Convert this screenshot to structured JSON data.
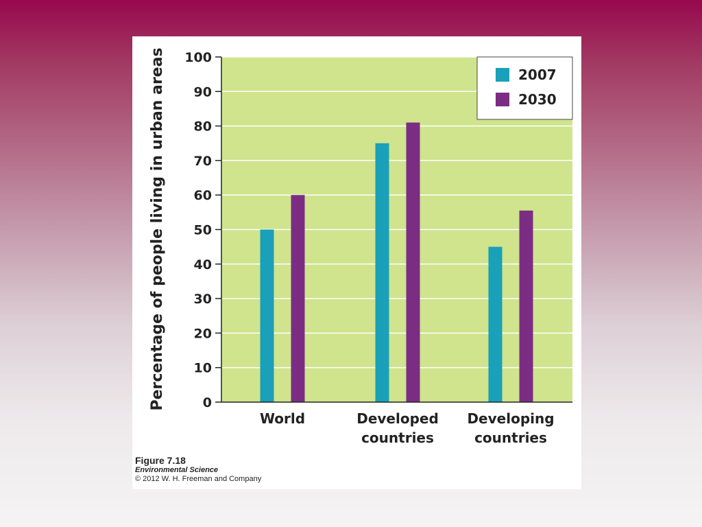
{
  "caption": {
    "figure": "Figure 7.18",
    "book": "Environmental Science",
    "copyright": "© 2012 W. H. Freeman and Company"
  },
  "colors": {
    "plot_bg": "#cfe48d",
    "s2007": "#1aa0b8",
    "s2030": "#7b2d83",
    "grid": "#ffffff"
  },
  "chart_data": {
    "type": "bar",
    "title": "",
    "xlabel": "",
    "ylabel": "Percentage of people living in urban areas",
    "categories": [
      [
        "World"
      ],
      [
        "Developed",
        "countries"
      ],
      [
        "Developing",
        "countries"
      ]
    ],
    "series": [
      {
        "name": "2007",
        "values": [
          50,
          75,
          45
        ]
      },
      {
        "name": "2030",
        "values": [
          60,
          81,
          55.5
        ]
      }
    ],
    "ylim": [
      0,
      100
    ],
    "yticks": [
      0,
      10,
      20,
      30,
      40,
      50,
      60,
      70,
      80,
      90,
      100
    ],
    "grid": true,
    "legend": "top-right"
  }
}
